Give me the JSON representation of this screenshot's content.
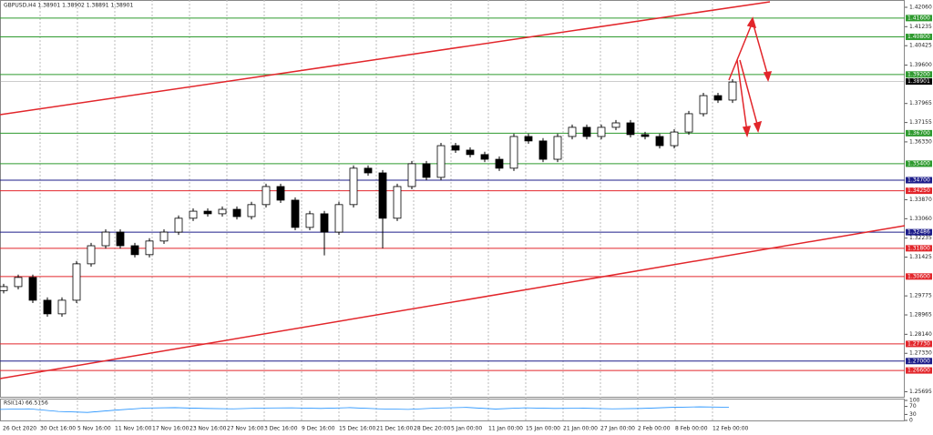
{
  "chart_data": {
    "type": "candlestick",
    "title": "GBPUSD,H4  1.38901 1.38902 1.38891 1.38901",
    "ylim": [
      1.2548,
      1.4237
    ],
    "yticks": [
      {
        "value": 1.4206,
        "label": "1.42060"
      },
      {
        "value": 1.41235,
        "label": "1.41235"
      },
      {
        "value": 1.40425,
        "label": "1.40425"
      },
      {
        "value": 1.396,
        "label": "1.39600"
      },
      {
        "value": 1.37965,
        "label": "1.37965"
      },
      {
        "value": 1.37155,
        "label": "1.37155"
      },
      {
        "value": 1.3633,
        "label": "1.36330"
      },
      {
        "value": 1.3387,
        "label": "1.33870"
      },
      {
        "value": 1.3306,
        "label": "1.33060"
      },
      {
        "value": 1.32235,
        "label": "1.32235"
      },
      {
        "value": 1.31425,
        "label": "1.31425"
      },
      {
        "value": 1.29775,
        "label": "1.29775"
      },
      {
        "value": 1.28965,
        "label": "1.28965"
      },
      {
        "value": 1.2814,
        "label": "1.28140"
      },
      {
        "value": 1.2733,
        "label": "1.27330"
      },
      {
        "value": 1.25695,
        "label": "1.25695"
      }
    ],
    "categories": [
      "26 Oct 2020",
      "30 Oct 16:00",
      "5 Nov 16:00",
      "11 Nov 16:00",
      "17 Nov 16:00",
      "23 Nov 16:00",
      "27 Nov 16:00",
      "3 Dec 16:00",
      "9 Dec 16:00",
      "15 Dec 16:00",
      "21 Dec 16:00",
      "28 Dec 20:00",
      "5 Jan 00:00",
      "11 Jan 00:00",
      "15 Jan 00:00",
      "21 Jan 00:00",
      "27 Jan 00:00",
      "2 Feb 00:00",
      "8 Feb 00:00",
      "12 Feb 00:00"
    ],
    "current_price": {
      "value": 1.38901,
      "label": "1.38901"
    },
    "levels": [
      {
        "value": 1.416,
        "label": "1.41600",
        "color": "#2e9a2e"
      },
      {
        "value": 1.408,
        "label": "1.40800",
        "color": "#2e9a2e"
      },
      {
        "value": 1.392,
        "label": "1.39200",
        "color": "#2e9a2e"
      },
      {
        "value": 1.367,
        "label": "1.36700",
        "color": "#2e9a2e"
      },
      {
        "value": 1.354,
        "label": "1.35400",
        "color": "#2e9a2e"
      },
      {
        "value": 1.347,
        "label": "1.34700",
        "color": "#1c1c8a"
      },
      {
        "value": 1.3425,
        "label": "1.34250",
        "color": "#e2262b"
      },
      {
        "value": 1.32486,
        "label": "1.32486",
        "color": "#1c1c8a"
      },
      {
        "value": 1.318,
        "label": "1.31800",
        "color": "#e2262b"
      },
      {
        "value": 1.306,
        "label": "1.30600",
        "color": "#e2262b"
      },
      {
        "value": 1.2773,
        "label": "1.27730",
        "color": "#e2262b"
      },
      {
        "value": 1.27,
        "label": "1.27000",
        "color": "#1c1c8a"
      },
      {
        "value": 1.266,
        "label": "1.26600",
        "color": "#e2262b"
      }
    ],
    "ohlc": [
      [
        1.3,
        1.3029,
        1.2988,
        1.3017
      ],
      [
        1.3017,
        1.3068,
        1.3005,
        1.3056
      ],
      [
        1.3056,
        1.3068,
        1.2947,
        1.2959
      ],
      [
        1.2959,
        1.2971,
        1.2889,
        1.2901
      ],
      [
        1.2901,
        1.2971,
        1.2889,
        1.2959
      ],
      [
        1.2959,
        1.3126,
        1.2947,
        1.3114
      ],
      [
        1.3114,
        1.3203,
        1.3102,
        1.3191
      ],
      [
        1.3191,
        1.3261,
        1.3179,
        1.3249
      ],
      [
        1.3249,
        1.3261,
        1.3179,
        1.3191
      ],
      [
        1.3191,
        1.3203,
        1.3141,
        1.3153
      ],
      [
        1.3153,
        1.3223,
        1.3141,
        1.3211
      ],
      [
        1.3211,
        1.3261,
        1.3199,
        1.3249
      ],
      [
        1.3249,
        1.332,
        1.3237,
        1.3308
      ],
      [
        1.3308,
        1.335,
        1.3296,
        1.3338
      ],
      [
        1.3338,
        1.335,
        1.3315,
        1.3327
      ],
      [
        1.3327,
        1.3358,
        1.3315,
        1.3346
      ],
      [
        1.3346,
        1.3358,
        1.3303,
        1.3315
      ],
      [
        1.3315,
        1.3378,
        1.3303,
        1.3366
      ],
      [
        1.3366,
        1.3455,
        1.3354,
        1.3443
      ],
      [
        1.3443,
        1.3455,
        1.3373,
        1.3385
      ],
      [
        1.3385,
        1.3397,
        1.3257,
        1.3269
      ],
      [
        1.3269,
        1.3339,
        1.3257,
        1.3327
      ],
      [
        1.3327,
        1.3339,
        1.315,
        1.3249
      ],
      [
        1.3249,
        1.3378,
        1.3237,
        1.3366
      ],
      [
        1.3366,
        1.3533,
        1.3354,
        1.3521
      ],
      [
        1.3521,
        1.3533,
        1.3489,
        1.3501
      ],
      [
        1.3501,
        1.3513,
        1.318,
        1.3308
      ],
      [
        1.3308,
        1.3455,
        1.3296,
        1.3443
      ],
      [
        1.3443,
        1.3552,
        1.3431,
        1.354
      ],
      [
        1.354,
        1.3552,
        1.347,
        1.3482
      ],
      [
        1.3482,
        1.3629,
        1.347,
        1.3617
      ],
      [
        1.3617,
        1.3629,
        1.3586,
        1.3598
      ],
      [
        1.3598,
        1.361,
        1.3567,
        1.3579
      ],
      [
        1.3579,
        1.3591,
        1.3547,
        1.3559
      ],
      [
        1.3559,
        1.3571,
        1.3509,
        1.3521
      ],
      [
        1.3521,
        1.3668,
        1.3509,
        1.3656
      ],
      [
        1.3656,
        1.3668,
        1.3625,
        1.3637
      ],
      [
        1.3637,
        1.3649,
        1.3547,
        1.3559
      ],
      [
        1.3559,
        1.3668,
        1.3547,
        1.3656
      ],
      [
        1.3656,
        1.3707,
        1.3644,
        1.3695
      ],
      [
        1.3695,
        1.3707,
        1.3644,
        1.3656
      ],
      [
        1.3656,
        1.3707,
        1.3644,
        1.3695
      ],
      [
        1.3695,
        1.3726,
        1.3683,
        1.3714
      ],
      [
        1.3714,
        1.3726,
        1.3652,
        1.3664
      ],
      [
        1.3664,
        1.3676,
        1.3644,
        1.3656
      ],
      [
        1.3656,
        1.3668,
        1.3605,
        1.3617
      ],
      [
        1.3617,
        1.3687,
        1.3605,
        1.3675
      ],
      [
        1.3675,
        1.3765,
        1.3663,
        1.3753
      ],
      [
        1.3753,
        1.3842,
        1.3741,
        1.383
      ],
      [
        1.383,
        1.3842,
        1.3799,
        1.3811
      ],
      [
        1.3811,
        1.39,
        1.3799,
        1.3888
      ]
    ],
    "rsi": {
      "label": "RSI(14) 66.5156",
      "ylim": [
        0,
        100
      ],
      "yticks": [
        100,
        70,
        30,
        0
      ],
      "values": [
        55,
        58,
        45,
        40,
        52,
        62,
        64,
        60,
        58,
        62,
        63,
        60,
        64,
        58,
        55,
        62,
        65,
        57,
        63,
        60,
        61,
        58,
        60,
        65,
        68,
        66
      ]
    }
  }
}
